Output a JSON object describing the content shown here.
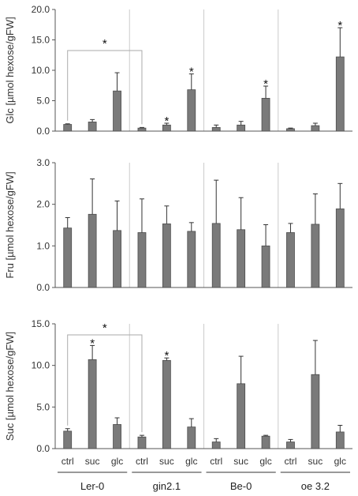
{
  "chart_data": [
    {
      "type": "bar",
      "ylabel": "Glc [µmol hexose/gFW]",
      "ylim": [
        0,
        20
      ],
      "yticks": [
        "0.0",
        "5.0",
        "10.0",
        "15.0",
        "20.0"
      ],
      "categories": [
        "ctrl",
        "suc",
        "glc",
        "ctrl",
        "suc",
        "glc",
        "ctrl",
        "suc",
        "glc",
        "ctrl",
        "suc",
        "glc"
      ],
      "values": [
        1.1,
        1.5,
        6.6,
        0.5,
        1.0,
        6.8,
        0.6,
        1.0,
        5.4,
        0.4,
        0.9,
        12.2
      ],
      "errors": [
        0.1,
        0.4,
        3.0,
        0.1,
        0.3,
        2.6,
        0.4,
        0.6,
        2.0,
        0.1,
        0.4,
        4.8
      ],
      "stars": [
        "",
        "",
        "",
        "",
        "*",
        "*",
        "",
        "",
        "*",
        "",
        "",
        "*"
      ],
      "bracket": {
        "from": 0,
        "to": 3,
        "label": "*"
      },
      "grid": false
    },
    {
      "type": "bar",
      "ylabel": "Fru [µmol hexose/gFW]",
      "ylim": [
        0,
        3
      ],
      "yticks": [
        "0.0",
        "1.0",
        "2.0",
        "3.0"
      ],
      "categories": [
        "ctrl",
        "suc",
        "glc",
        "ctrl",
        "suc",
        "glc",
        "ctrl",
        "suc",
        "glc",
        "ctrl",
        "suc",
        "glc"
      ],
      "values": [
        1.43,
        1.76,
        1.37,
        1.32,
        1.53,
        1.35,
        1.54,
        1.39,
        1.0,
        1.32,
        1.52,
        1.89
      ],
      "errors": [
        0.25,
        0.85,
        0.71,
        0.81,
        0.43,
        0.21,
        1.04,
        0.77,
        0.51,
        0.22,
        0.73,
        0.61
      ],
      "stars": [
        "",
        "",
        "",
        "",
        "",
        "",
        "",
        "",
        "",
        "",
        "",
        ""
      ],
      "grid": false
    },
    {
      "type": "bar",
      "ylabel": "Suc [µmol hexose/gFW]",
      "ylim": [
        0,
        15
      ],
      "yticks": [
        "0.0",
        "5.0",
        "10.0",
        "15.0"
      ],
      "categories": [
        "ctrl",
        "suc",
        "glc",
        "ctrl",
        "suc",
        "glc",
        "ctrl",
        "suc",
        "glc",
        "ctrl",
        "suc",
        "glc"
      ],
      "values": [
        2.1,
        10.7,
        2.9,
        1.4,
        10.6,
        2.6,
        0.8,
        7.8,
        1.5,
        0.8,
        8.9,
        2.0
      ],
      "errors": [
        0.3,
        1.7,
        0.8,
        0.2,
        0.3,
        1.0,
        0.4,
        3.3,
        0.1,
        0.3,
        4.1,
        0.8
      ],
      "stars": [
        "",
        "*",
        "",
        "",
        "*",
        "",
        "",
        "",
        "",
        "",
        "",
        ""
      ],
      "bracket": {
        "from": 0,
        "to": 3,
        "label": "*"
      },
      "grid": false
    }
  ],
  "groups": [
    "Ler-0",
    "gin2.1",
    "Be-0",
    "oe 3.2"
  ],
  "colors": {
    "bar": "#7a7a7a",
    "bar_edge": "#4d4d4d",
    "divider": "#cccccc",
    "axis": "#555555",
    "bracket": "#aaaaaa"
  }
}
